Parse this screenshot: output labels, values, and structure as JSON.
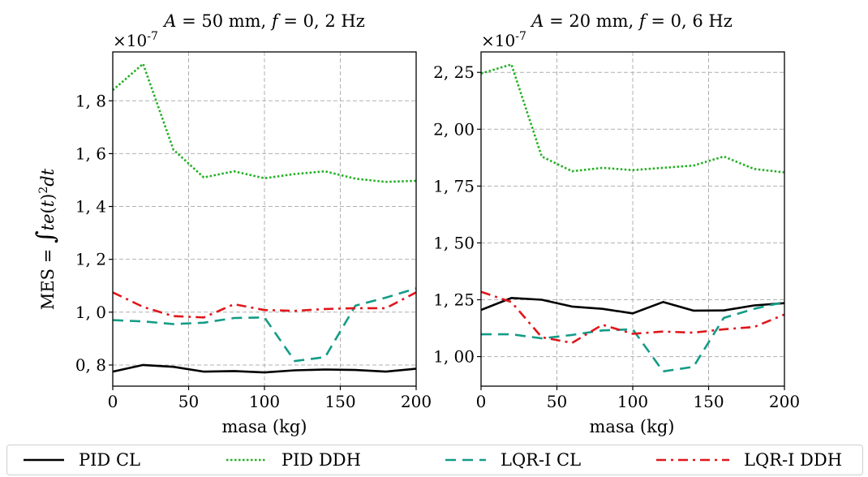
{
  "chart_data": [
    {
      "type": "line",
      "title": "A = 50 mm, f = 0,2 Hz",
      "title_parts": {
        "a_sym": "A",
        "a_val": " = 50 mm, ",
        "f_sym": "f",
        "f_val": " = 0, 2 Hz"
      },
      "xlabel": "masa (kg)",
      "ylabel": "MES = ∫te(t)²dt",
      "ylabel_parts": {
        "a": "MES",
        "b": " = ",
        "c": "∫",
        "d": "te",
        "e": "(",
        "f": "t",
        "g": ")",
        "h": "2",
        "i": "dt"
      },
      "scale_label": "×10",
      "scale_exp": "-7",
      "xlim": [
        0,
        200
      ],
      "ylim": [
        0.72,
        1.985
      ],
      "xticks": [
        0,
        50,
        100,
        150,
        200
      ],
      "xtick_labels": [
        "0",
        "50",
        "100",
        "150",
        "200"
      ],
      "yticks": [
        0.8,
        1.0,
        1.2,
        1.4,
        1.6,
        1.8
      ],
      "ytick_labels": [
        "0, 8",
        "1, 0",
        "1, 2",
        "1, 4",
        "1, 6",
        "1, 8"
      ],
      "grid": true,
      "x": [
        0,
        20,
        40,
        60,
        80,
        100,
        120,
        140,
        160,
        180,
        200
      ],
      "series": [
        {
          "name": "PID CL",
          "color": "#000000",
          "style": "solid",
          "values": [
            0.775,
            0.8,
            0.793,
            0.775,
            0.777,
            0.772,
            0.78,
            0.783,
            0.781,
            0.775,
            0.786
          ]
        },
        {
          "name": "PID DDH",
          "color": "#22b022",
          "style": "dotted",
          "values": [
            1.84,
            1.94,
            1.615,
            1.51,
            1.533,
            1.507,
            1.523,
            1.533,
            1.505,
            1.493,
            1.497
          ]
        },
        {
          "name": "LQR-I CL",
          "color": "#139c87",
          "style": "dashed",
          "values": [
            0.97,
            0.965,
            0.955,
            0.96,
            0.978,
            0.98,
            0.815,
            0.83,
            1.025,
            1.055,
            1.09
          ]
        },
        {
          "name": "LQR-I DDH",
          "color": "#e0161b",
          "style": "dashdot",
          "values": [
            1.075,
            1.02,
            0.985,
            0.98,
            1.03,
            1.008,
            1.005,
            1.012,
            1.015,
            1.015,
            1.075
          ]
        }
      ]
    },
    {
      "type": "line",
      "title": "A = 20 mm, f = 0,6 Hz",
      "title_parts": {
        "a_sym": "A",
        "a_val": " = 20 mm, ",
        "f_sym": "f",
        "f_val": " = 0, 6 Hz"
      },
      "xlabel": "masa (kg)",
      "ylabel": "",
      "scale_label": "×10",
      "scale_exp": "-7",
      "xlim": [
        0,
        200
      ],
      "ylim": [
        0.87,
        2.34
      ],
      "xticks": [
        0,
        50,
        100,
        150,
        200
      ],
      "xtick_labels": [
        "0",
        "50",
        "100",
        "150",
        "200"
      ],
      "yticks": [
        1.0,
        1.25,
        1.5,
        1.75,
        2.0,
        2.25
      ],
      "ytick_labels": [
        "1, 00",
        "1, 25",
        "1, 50",
        "1, 75",
        "2, 00",
        "2, 25"
      ],
      "grid": true,
      "x": [
        0,
        20,
        40,
        60,
        80,
        100,
        120,
        140,
        160,
        180,
        200
      ],
      "series": [
        {
          "name": "PID CL",
          "color": "#000000",
          "style": "solid",
          "values": [
            1.205,
            1.258,
            1.25,
            1.22,
            1.21,
            1.19,
            1.24,
            1.202,
            1.203,
            1.225,
            1.235
          ]
        },
        {
          "name": "PID DDH",
          "color": "#22b022",
          "style": "dotted",
          "values": [
            2.245,
            2.285,
            1.88,
            1.815,
            1.83,
            1.82,
            1.83,
            1.84,
            1.88,
            1.825,
            1.81
          ]
        },
        {
          "name": "LQR-I CL",
          "color": "#139c87",
          "style": "dashed",
          "values": [
            1.098,
            1.098,
            1.08,
            1.095,
            1.115,
            1.12,
            0.935,
            0.955,
            1.17,
            1.21,
            1.24
          ]
        },
        {
          "name": "LQR-I DDH",
          "color": "#e0161b",
          "style": "dashdot",
          "values": [
            1.285,
            1.24,
            1.085,
            1.06,
            1.14,
            1.1,
            1.11,
            1.105,
            1.12,
            1.13,
            1.185
          ]
        }
      ]
    }
  ],
  "legend": {
    "placement": "bottom",
    "items": [
      {
        "label": "PID CL",
        "color": "#000000",
        "style": "solid"
      },
      {
        "label": "PID DDH",
        "color": "#22b022",
        "style": "dotted"
      },
      {
        "label": "LQR-I CL",
        "color": "#139c87",
        "style": "dashed"
      },
      {
        "label": "LQR-I DDH",
        "color": "#e0161b",
        "style": "dashdot"
      }
    ]
  }
}
